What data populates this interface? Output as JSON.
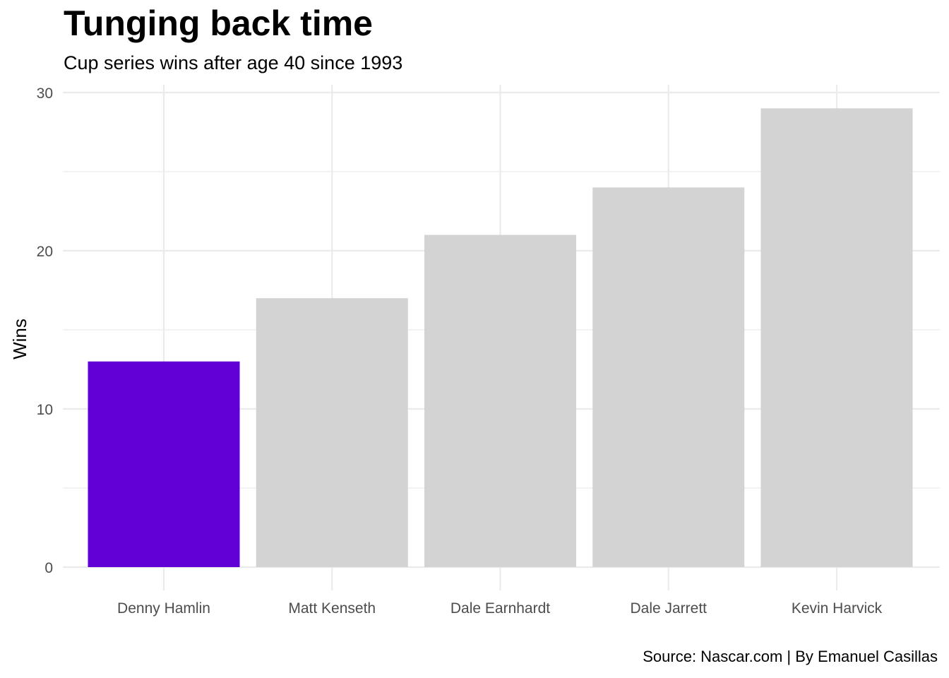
{
  "title": "Tunging back time",
  "subtitle": "Cup series wins after age 40 since 1993",
  "caption": "Source: Nascar.com | By Emanuel Casillas",
  "chart_data": {
    "type": "bar",
    "title": "Tunging back time",
    "subtitle": "Cup series wins after age 40 since 1993",
    "xlabel": "",
    "ylabel": "Wins",
    "categories": [
      "Denny Hamlin",
      "Matt Kenseth",
      "Dale Earnhardt",
      "Dale Jarrett",
      "Kevin Harvick"
    ],
    "values": [
      13,
      17,
      21,
      24,
      29
    ],
    "highlight": "Denny Hamlin",
    "highlight_color": "#6100d6",
    "bar_color": "#d3d3d3",
    "grid_color": "#ebebeb",
    "ylim": [
      0,
      30
    ],
    "yticks": [
      0,
      10,
      20,
      30
    ],
    "grid": true,
    "legend": "none"
  }
}
